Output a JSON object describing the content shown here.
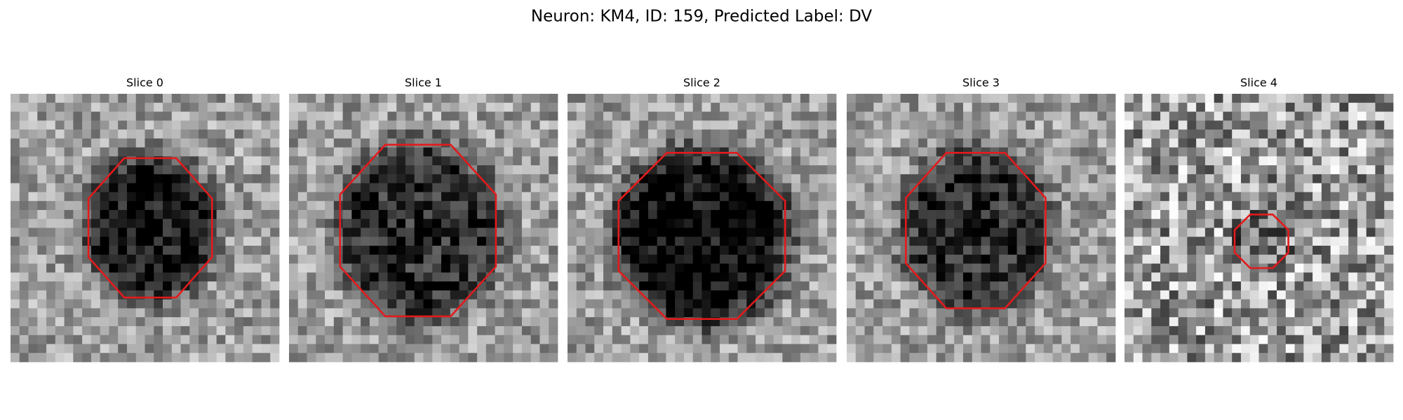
{
  "title": "Neuron: KM4, ID: 159, Predicted Label: DV",
  "panels": [
    {
      "title": "Slice 0"
    },
    {
      "title": "Slice 1"
    },
    {
      "title": "Slice 2"
    },
    {
      "title": "Slice 3"
    },
    {
      "title": "Slice 4"
    }
  ]
}
